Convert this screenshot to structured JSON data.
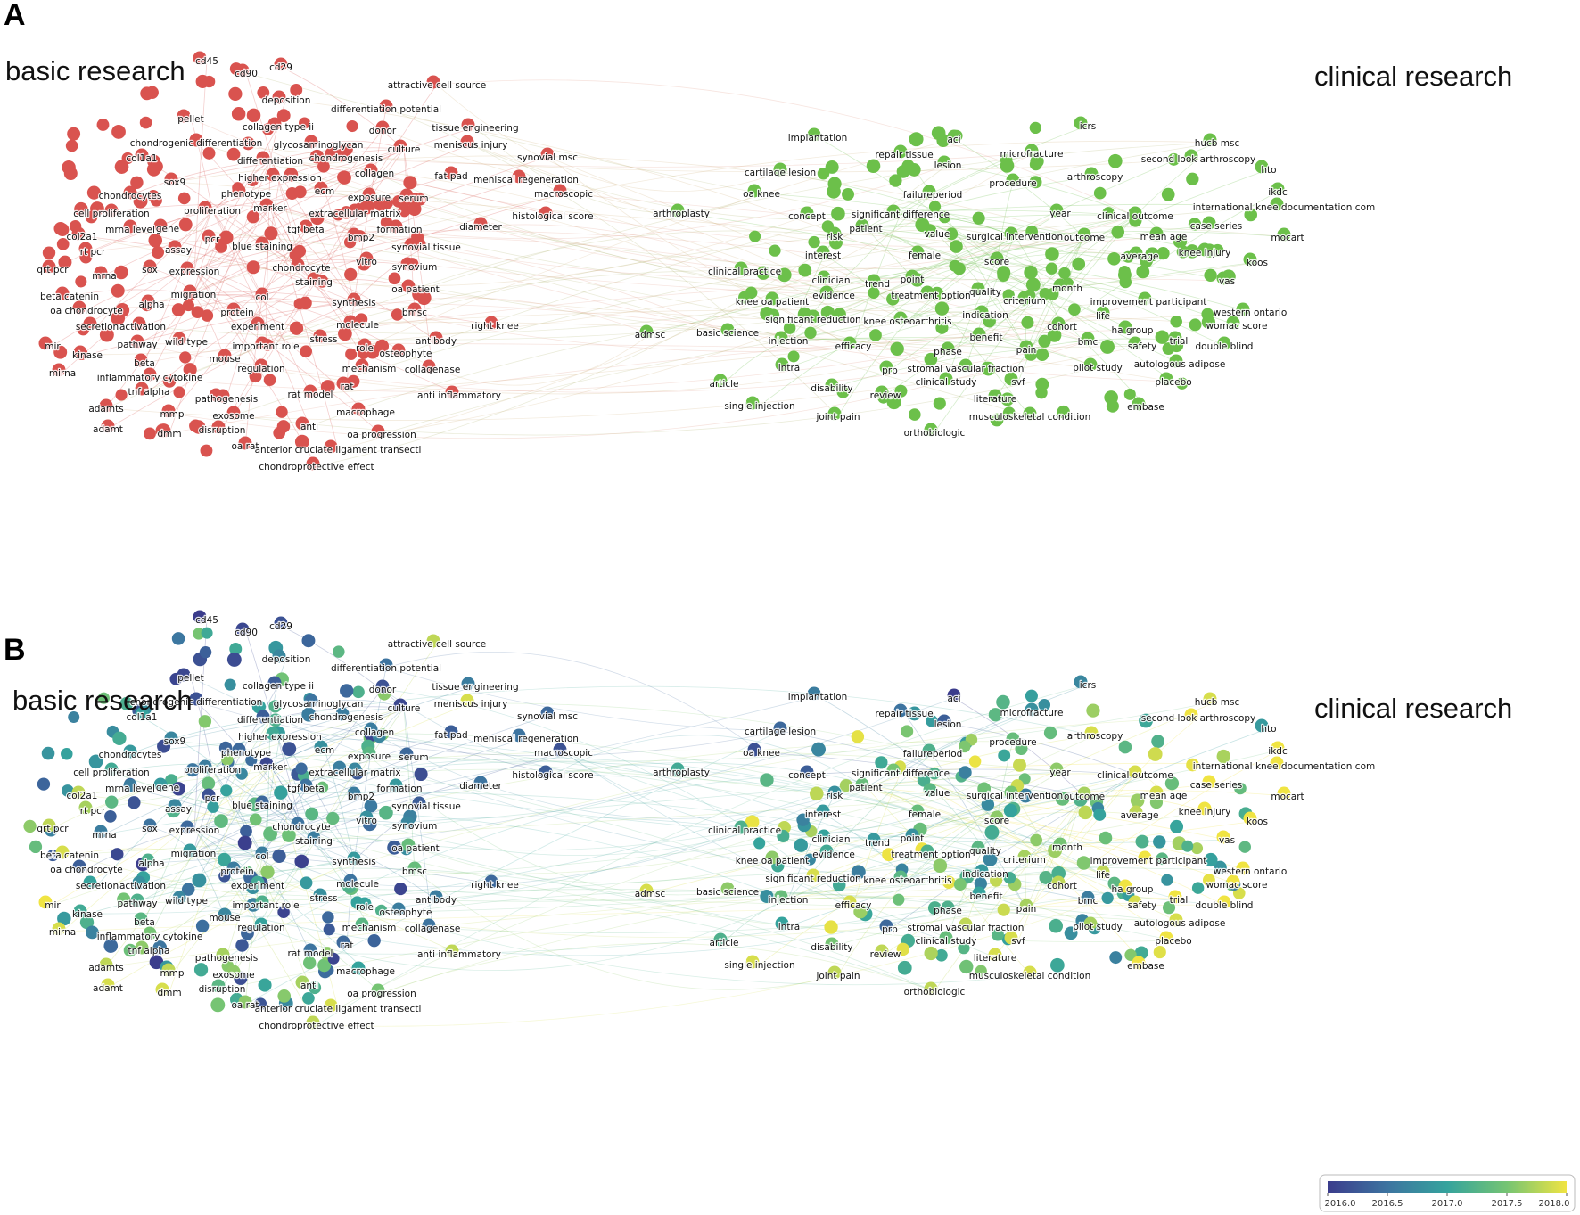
{
  "panels": [
    {
      "letter": "A",
      "mode": "cluster",
      "left_title": "basic research",
      "right_title": "clinical research"
    },
    {
      "letter": "B",
      "mode": "overlay",
      "left_title": "basic research",
      "right_title": "clinical research"
    }
  ],
  "cluster_colors": {
    "basic": "#d9534f",
    "clinical": "#6cc04a"
  },
  "colorbar": {
    "ticks": [
      "2016.0",
      "2016.5",
      "2017.0",
      "2017.5",
      "2018.0"
    ],
    "min": 2016.0,
    "max": 2018.0,
    "gradient": [
      "#3b3c8c",
      "#3d74a0",
      "#35a39d",
      "#75c473",
      "#f0e442"
    ]
  },
  "terms": {
    "basic": [
      {
        "label": "cd45",
        "year": 2016.0
      },
      {
        "label": "cd90",
        "year": 2016.1
      },
      {
        "label": "cd29",
        "year": 2016.2
      },
      {
        "label": "deposition",
        "year": 2016.7
      },
      {
        "label": "attractive cell source",
        "year": 2017.8
      },
      {
        "label": "differentiation potential",
        "year": 2016.5
      },
      {
        "label": "pellet",
        "year": 2016.1
      },
      {
        "label": "collagen type ii",
        "year": 2016.3
      },
      {
        "label": "donor",
        "year": 2016.2
      },
      {
        "label": "tissue engineering",
        "year": 2016.6
      },
      {
        "label": "meniscus injury",
        "year": 2017.9
      },
      {
        "label": "chondrogenic differentiation",
        "year": 2016.2
      },
      {
        "label": "glycosaminoglycan",
        "year": 2016.5
      },
      {
        "label": "culture",
        "year": 2016.1
      },
      {
        "label": "col1a1",
        "year": 2017.0
      },
      {
        "label": "differentiation",
        "year": 2016.3
      },
      {
        "label": "chondrogenesis",
        "year": 2016.6
      },
      {
        "label": "synovial msc",
        "year": 2016.4
      },
      {
        "label": "higher expression",
        "year": 2017.1
      },
      {
        "label": "collagen",
        "year": 2016.6
      },
      {
        "label": "fat pad",
        "year": 2016.3
      },
      {
        "label": "meniscal regeneration",
        "year": 2016.5
      },
      {
        "label": "sox9",
        "year": 2016.7
      },
      {
        "label": "chondrocytes",
        "year": 2016.9
      },
      {
        "label": "phenotype",
        "year": 2016.4
      },
      {
        "label": "ecm",
        "year": 2016.8
      },
      {
        "label": "exposure",
        "year": 2017.3
      },
      {
        "label": "serum",
        "year": 2016.4
      },
      {
        "label": "macroscopic",
        "year": 2016.2
      },
      {
        "label": "cell proliferation",
        "year": 2017.1
      },
      {
        "label": "proliferation",
        "year": 2016.6
      },
      {
        "label": "marker",
        "year": 2016.1
      },
      {
        "label": "extracellular matrix",
        "year": 2016.7
      },
      {
        "label": "histological score",
        "year": 2016.3
      },
      {
        "label": "col2a1",
        "year": 2017.8
      },
      {
        "label": "mrna level",
        "year": 2016.6
      },
      {
        "label": "gene",
        "year": 2016.9
      },
      {
        "label": "pcr",
        "year": 2016.2
      },
      {
        "label": "tgf beta",
        "year": 2016.5
      },
      {
        "label": "bmp2",
        "year": 2016.6
      },
      {
        "label": "formation",
        "year": 2016.9
      },
      {
        "label": "diameter",
        "year": 2016.5
      },
      {
        "label": "rt pcr",
        "year": 2017.7
      },
      {
        "label": "assay",
        "year": 2016.7
      },
      {
        "label": "blue staining",
        "year": 2016.4
      },
      {
        "label": "synovial tissue",
        "year": 2016.3
      },
      {
        "label": "qrt pcr",
        "year": 2017.8
      },
      {
        "label": "sox",
        "year": 2016.5
      },
      {
        "label": "expression",
        "year": 2016.4
      },
      {
        "label": "chondrocyte",
        "year": 2016.5
      },
      {
        "label": "vitro",
        "year": 2016.8
      },
      {
        "label": "synovium",
        "year": 2016.7
      },
      {
        "label": "mrna",
        "year": 2016.6
      },
      {
        "label": "staining",
        "year": 2016.6
      },
      {
        "label": "oa patient",
        "year": 2017.4
      },
      {
        "label": "migration",
        "year": 2016.9
      },
      {
        "label": "col",
        "year": 2016.6
      },
      {
        "label": "beta catenin",
        "year": 2017.9
      },
      {
        "label": "alpha",
        "year": 2017.2
      },
      {
        "label": "synthesis",
        "year": 2016.9
      },
      {
        "label": "oa chondrocyte",
        "year": 2016.3
      },
      {
        "label": "protein",
        "year": 2016.6
      },
      {
        "label": "bmsc",
        "year": 2017.4
      },
      {
        "label": "secretion",
        "year": 2017.0
      },
      {
        "label": "activation",
        "year": 2016.8
      },
      {
        "label": "experiment",
        "year": 2017.1
      },
      {
        "label": "molecule",
        "year": 2016.5
      },
      {
        "label": "right knee",
        "year": 2016.4
      },
      {
        "label": "pathway",
        "year": 2017.2
      },
      {
        "label": "wild type",
        "year": 2016.7
      },
      {
        "label": "stress",
        "year": 2016.8
      },
      {
        "label": "antibody",
        "year": 2016.6
      },
      {
        "label": "mir",
        "year": 2018.0
      },
      {
        "label": "important role",
        "year": 2017.2
      },
      {
        "label": "role",
        "year": 2017.0
      },
      {
        "label": "kinase",
        "year": 2017.1
      },
      {
        "label": "beta",
        "year": 2017.3
      },
      {
        "label": "mouse",
        "year": 2016.7
      },
      {
        "label": "osteophyte",
        "year": 2016.6
      },
      {
        "label": "mirna",
        "year": 2017.9
      },
      {
        "label": "regulation",
        "year": 2017.0
      },
      {
        "label": "mechanism",
        "year": 2017.3
      },
      {
        "label": "collagenase",
        "year": 2016.5
      },
      {
        "label": "inflammatory cytokine",
        "year": 2017.5
      },
      {
        "label": "tnf alpha",
        "year": 2017.6
      },
      {
        "label": "rat",
        "year": 2016.4
      },
      {
        "label": "rat model",
        "year": 2016.5
      },
      {
        "label": "anti inflammatory",
        "year": 2017.8
      },
      {
        "label": "pathogenesis",
        "year": 2017.7
      },
      {
        "label": "adamts",
        "year": 2017.8
      },
      {
        "label": "macrophage",
        "year": 2017.0
      },
      {
        "label": "mmp",
        "year": 2017.8
      },
      {
        "label": "exosome",
        "year": 2017.6
      },
      {
        "label": "dmm",
        "year": 2017.9
      },
      {
        "label": "disruption",
        "year": 2017.3
      },
      {
        "label": "adamt",
        "year": 2017.9
      },
      {
        "label": "anti",
        "year": 2017.7
      },
      {
        "label": "oa progression",
        "year": 2017.5
      },
      {
        "label": "oa rat",
        "year": 2017.6
      },
      {
        "label": "anterior cruciate ligament transecti",
        "year": 2017.9
      },
      {
        "label": "chondroprotective effect",
        "year": 2017.8
      }
    ],
    "clinical": [
      {
        "label": "icrs",
        "year": 2016.7
      },
      {
        "label": "implantation",
        "year": 2016.6
      },
      {
        "label": "aci",
        "year": 2016.0
      },
      {
        "label": "hucb msc",
        "year": 2017.9
      },
      {
        "label": "repair tissue",
        "year": 2016.5
      },
      {
        "label": "microfracture",
        "year": 2016.8
      },
      {
        "label": "second look arthroscopy",
        "year": 2018.0
      },
      {
        "label": "lesion",
        "year": 2016.3
      },
      {
        "label": "cartilage lesion",
        "year": 2016.4
      },
      {
        "label": "hto",
        "year": 2016.9
      },
      {
        "label": "arthroscopy",
        "year": 2017.9
      },
      {
        "label": "procedure",
        "year": 2017.4
      },
      {
        "label": "oa knee",
        "year": 2016.2
      },
      {
        "label": "failureperiod",
        "year": 2017.2
      },
      {
        "label": "ikdc",
        "year": 2018.0
      },
      {
        "label": "international knee documentation com",
        "year": 2018.0
      },
      {
        "label": "arthroplasty",
        "year": 2017.1
      },
      {
        "label": "concept",
        "year": 2016.3
      },
      {
        "label": "significant difference",
        "year": 2017.5
      },
      {
        "label": "year",
        "year": 2017.6
      },
      {
        "label": "clinical outcome",
        "year": 2017.9
      },
      {
        "label": "case series",
        "year": 2018.0
      },
      {
        "label": "patient",
        "year": 2017.4
      },
      {
        "label": "risk",
        "year": 2016.8
      },
      {
        "label": "value",
        "year": 2017.3
      },
      {
        "label": "surgical intervention",
        "year": 2017.5
      },
      {
        "label": "outcome",
        "year": 2017.7
      },
      {
        "label": "mean age",
        "year": 2017.9
      },
      {
        "label": "mocart",
        "year": 2018.0
      },
      {
        "label": "interest",
        "year": 2016.9
      },
      {
        "label": "female",
        "year": 2017.4
      },
      {
        "label": "average",
        "year": 2017.8
      },
      {
        "label": "knee injury",
        "year": 2018.0
      },
      {
        "label": "koos",
        "year": 2018.0
      },
      {
        "label": "clinical practice",
        "year": 2017.2
      },
      {
        "label": "score",
        "year": 2017.6
      },
      {
        "label": "clinician",
        "year": 2017.0
      },
      {
        "label": "trend",
        "year": 2016.9
      },
      {
        "label": "point",
        "year": 2016.8
      },
      {
        "label": "quality",
        "year": 2017.3
      },
      {
        "label": "vas",
        "year": 2018.0
      },
      {
        "label": "knee oa patient",
        "year": 2017.6
      },
      {
        "label": "evidence",
        "year": 2017.1
      },
      {
        "label": "treatment option",
        "year": 2017.2
      },
      {
        "label": "criterium",
        "year": 2017.7
      },
      {
        "label": "month",
        "year": 2017.5
      },
      {
        "label": "improvement participant",
        "year": 2018.0
      },
      {
        "label": "significant reduction",
        "year": 2017.9
      },
      {
        "label": "knee osteoarthritis",
        "year": 2017.3
      },
      {
        "label": "indication",
        "year": 2016.9
      },
      {
        "label": "life",
        "year": 2017.8
      },
      {
        "label": "western ontario",
        "year": 2018.0
      },
      {
        "label": "admsc",
        "year": 2017.9
      },
      {
        "label": "basic science",
        "year": 2017.6
      },
      {
        "label": "injection",
        "year": 2017.4
      },
      {
        "label": "efficacy",
        "year": 2017.9
      },
      {
        "label": "phase",
        "year": 2017.2
      },
      {
        "label": "benefit",
        "year": 2017.0
      },
      {
        "label": "cohort",
        "year": 2017.8
      },
      {
        "label": "bmc",
        "year": 2016.6
      },
      {
        "label": "ha group",
        "year": 2018.0
      },
      {
        "label": "womac score",
        "year": 2018.0
      },
      {
        "label": "pain",
        "year": 2017.7
      },
      {
        "label": "safety",
        "year": 2017.9
      },
      {
        "label": "trial",
        "year": 2018.0
      },
      {
        "label": "double blind",
        "year": 2018.0
      },
      {
        "label": "intra",
        "year": 2017.0
      },
      {
        "label": "prp",
        "year": 2016.4
      },
      {
        "label": "stromal vascular fraction",
        "year": 2017.8
      },
      {
        "label": "pilot study",
        "year": 2017.7
      },
      {
        "label": "autologous adipose",
        "year": 2017.9
      },
      {
        "label": "clinical study",
        "year": 2017.4
      },
      {
        "label": "svf",
        "year": 2017.9
      },
      {
        "label": "article",
        "year": 2017.2
      },
      {
        "label": "disability",
        "year": 2017.5
      },
      {
        "label": "placebo",
        "year": 2018.0
      },
      {
        "label": "review",
        "year": 2017.8
      },
      {
        "label": "literature",
        "year": 2017.9
      },
      {
        "label": "single injection",
        "year": 2017.9
      },
      {
        "label": "joint pain",
        "year": 2017.8
      },
      {
        "label": "musculoskeletal condition",
        "year": 2017.9
      },
      {
        "label": "embase",
        "year": 2018.0
      },
      {
        "label": "orthobiologic",
        "year": 2017.8
      }
    ]
  }
}
